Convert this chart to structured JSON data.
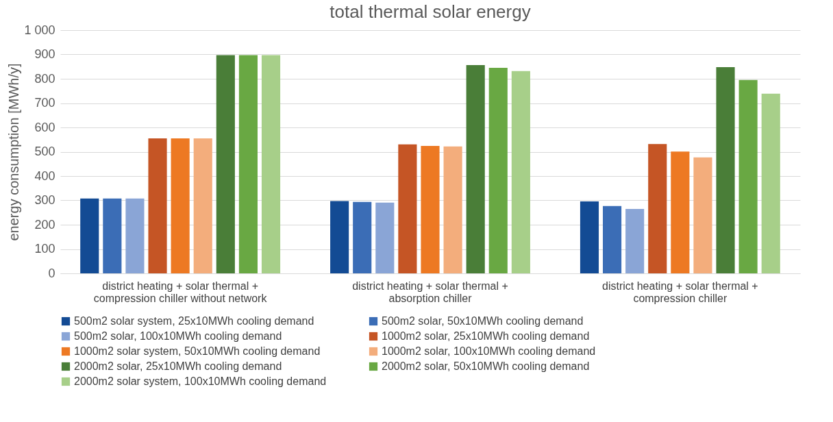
{
  "chart_data": {
    "type": "bar",
    "title": "total thermal solar energy",
    "ylabel": "energy consumption [MWh/y]",
    "categories": [
      "district heating + solar thermal + compression chiller without network",
      "district heating + solar thermal + absorption chiller",
      "district heating + solar thermal + compression chiller"
    ],
    "series": [
      {
        "name": "500m2 solar system, 25x10MWh cooling demand",
        "color": "#134b94",
        "values": [
          308,
          297,
          296
        ]
      },
      {
        "name": "500m2 solar, 50x10MWh cooling demand",
        "color": "#3b6db6",
        "values": [
          308,
          294,
          277
        ]
      },
      {
        "name": "500m2 solar, 100x10MWh cooling demand",
        "color": "#8aa5d6",
        "values": [
          308,
          291,
          265
        ]
      },
      {
        "name": "1000m2 solar, 25x10MWh cooling demand",
        "color": "#c55525",
        "values": [
          555,
          530,
          532
        ]
      },
      {
        "name": "1000m2 solar system, 50x10MWh cooling demand",
        "color": "#ed7923",
        "values": [
          555,
          524,
          501
        ]
      },
      {
        "name": "1000m2 solar, 100x10MWh cooling demand",
        "color": "#f3ad7c",
        "values": [
          555,
          522,
          477
        ]
      },
      {
        "name": "2000m2 solar, 25x10MWh cooling demand",
        "color": "#4a7e38",
        "values": [
          897,
          856,
          848
        ]
      },
      {
        "name": "2000m2 solar, 50x10MWh cooling demand",
        "color": "#69a843",
        "values": [
          897,
          845,
          795
        ]
      },
      {
        "name": "2000m2 solar system, 100x10MWh cooling demand",
        "color": "#a7cf89",
        "values": [
          897,
          832,
          739
        ]
      }
    ],
    "ylim": [
      0,
      1000
    ],
    "yticks": [
      0,
      100,
      200,
      300,
      400,
      500,
      600,
      700,
      800,
      900,
      {
        "value": 1000,
        "label": "1 000"
      }
    ],
    "grid": "y",
    "legend": "bottom"
  }
}
